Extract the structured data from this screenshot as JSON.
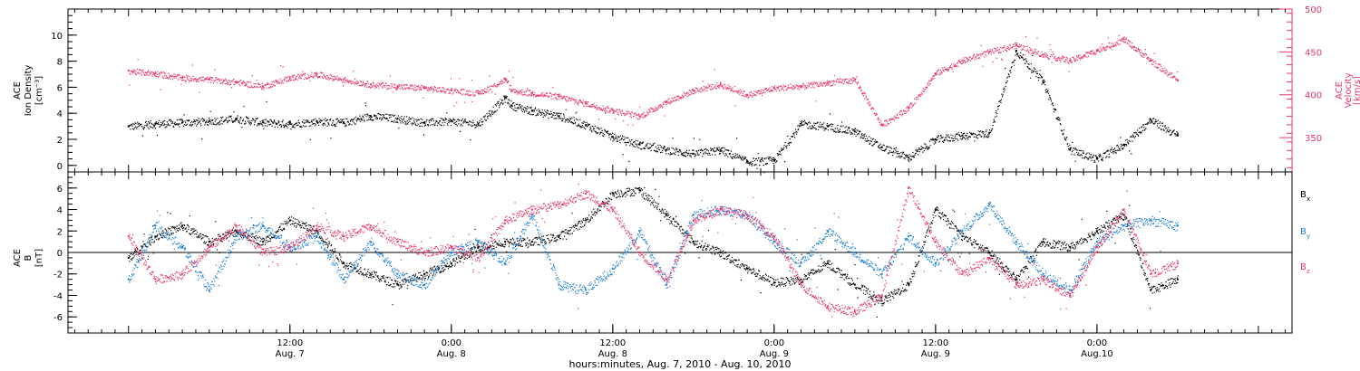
{
  "chart_data": [
    {
      "type": "scatter",
      "panel": "top",
      "ylabel_left": [
        "ACE",
        "Ion Density",
        "[cm⁻³]"
      ],
      "ylabel_right": [
        "ACE",
        "Velocity",
        "[km/s]"
      ],
      "yticks_left": [
        "0",
        "2",
        "4",
        "6",
        "8",
        "10"
      ],
      "yticks_right": [
        "350",
        "400",
        "450",
        "500"
      ],
      "ylim_left": [
        -0.5,
        12
      ],
      "ylim_right": [
        310,
        500
      ],
      "colors": {
        "density": "#000000",
        "velocity": "#e8386a"
      },
      "series": [
        {
          "axis": "left",
          "color": "#000000",
          "x": [
            0,
            2,
            4,
            6,
            8,
            10,
            12,
            14,
            16,
            18,
            20,
            22,
            24,
            26,
            28,
            28.5,
            30,
            32,
            34,
            36,
            38,
            40,
            42,
            44,
            46,
            48,
            50,
            52,
            54,
            56,
            58,
            60,
            62,
            64,
            66,
            68,
            70,
            72,
            74,
            76,
            78
          ],
          "values": [
            3.0,
            3.2,
            3.3,
            3.4,
            3.6,
            3.3,
            3.2,
            3.4,
            3.3,
            3.8,
            3.6,
            3.3,
            3.4,
            3.2,
            5.2,
            4.6,
            4.2,
            3.8,
            3.1,
            2.2,
            1.6,
            1.2,
            0.9,
            1.2,
            0.3,
            0.4,
            3.2,
            3.0,
            2.6,
            1.4,
            0.6,
            2.0,
            2.3,
            2.5,
            8.8,
            6.4,
            1.2,
            0.5,
            1.6,
            3.5,
            2.3
          ]
        },
        {
          "axis": "right",
          "color": "#e8386a",
          "x": [
            0,
            2,
            4,
            6,
            8,
            10,
            12,
            14,
            16,
            18,
            20,
            22,
            24,
            26,
            28,
            28.5,
            30,
            32,
            34,
            36,
            38,
            40,
            42,
            44,
            46,
            48,
            50,
            52,
            54,
            56,
            58,
            60,
            62,
            64,
            66,
            68,
            70,
            72,
            74,
            76,
            78
          ],
          "values": [
            428,
            425,
            420,
            418,
            415,
            410,
            420,
            424,
            418,
            412,
            410,
            408,
            405,
            402,
            418,
            405,
            402,
            398,
            390,
            382,
            375,
            392,
            405,
            412,
            400,
            408,
            410,
            414,
            418,
            365,
            385,
            425,
            440,
            450,
            458,
            447,
            440,
            452,
            465,
            440,
            417
          ]
        }
      ]
    },
    {
      "type": "scatter",
      "panel": "bottom",
      "ylabel": [
        "ACE",
        "B",
        "[nT]"
      ],
      "yticks": [
        "-6",
        "-4",
        "-2",
        "0",
        "2",
        "4",
        "6"
      ],
      "ylim": [
        -7.5,
        7.5
      ],
      "legend": [
        {
          "label": "B",
          "sub": "x",
          "color": "#000000"
        },
        {
          "label": "B",
          "sub": "y",
          "color": "#1e7fd6"
        },
        {
          "label": "B",
          "sub": "z",
          "color": "#e8386a"
        }
      ],
      "series": [
        {
          "sub": "x",
          "color": "#000000",
          "x": [
            0,
            2,
            4,
            6,
            8,
            10,
            12,
            14,
            16,
            18,
            20,
            22,
            24,
            26,
            28,
            30,
            32,
            34,
            36,
            38,
            40,
            42,
            44,
            46,
            48,
            50,
            52,
            54,
            56,
            58,
            60,
            62,
            64,
            66,
            68,
            70,
            72,
            74,
            76,
            78
          ],
          "values": [
            -0.5,
            1.5,
            2.5,
            1.0,
            2.0,
            1.0,
            3.0,
            2.0,
            -1.0,
            -2.0,
            -3.0,
            -2.0,
            -1.0,
            0.5,
            1.0,
            1.0,
            1.5,
            3.0,
            5.5,
            5.8,
            3.5,
            1.0,
            0.0,
            -1.5,
            -2.8,
            -2.5,
            -1.0,
            -3.0,
            -4.5,
            -3.0,
            4.0,
            1.5,
            0.0,
            -2.5,
            1.0,
            0.5,
            2.0,
            3.5,
            -3.5,
            -2.5
          ]
        },
        {
          "sub": "y",
          "color": "#1e7fd6",
          "x": [
            0,
            2,
            4,
            6,
            8,
            10,
            12,
            14,
            16,
            18,
            20,
            22,
            24,
            26,
            28,
            30,
            32,
            34,
            36,
            38,
            40,
            42,
            44,
            46,
            48,
            50,
            52,
            54,
            56,
            58,
            60,
            62,
            64,
            66,
            68,
            70,
            72,
            74,
            76,
            78
          ],
          "values": [
            -2.5,
            2.5,
            0.5,
            -3.5,
            1.5,
            2.5,
            0.5,
            1.5,
            -2.5,
            1.0,
            -2.0,
            -3.0,
            0.0,
            1.0,
            -1.0,
            3.5,
            -3.0,
            -3.5,
            -1.5,
            2.0,
            -3.0,
            3.5,
            4.0,
            3.5,
            1.0,
            -1.0,
            2.0,
            0.0,
            -2.0,
            1.5,
            -1.0,
            2.0,
            4.5,
            1.0,
            -2.0,
            -3.5,
            1.0,
            2.5,
            3.0,
            2.5
          ]
        },
        {
          "sub": "z",
          "color": "#e8386a",
          "x": [
            0,
            2,
            4,
            6,
            8,
            10,
            12,
            14,
            16,
            18,
            20,
            22,
            24,
            26,
            28,
            30,
            32,
            34,
            36,
            38,
            40,
            42,
            44,
            46,
            48,
            50,
            52,
            54,
            56,
            58,
            60,
            62,
            64,
            66,
            68,
            70,
            72,
            74,
            76,
            78
          ],
          "values": [
            1.5,
            -2.5,
            -2.0,
            0.5,
            2.5,
            0.0,
            0.5,
            2.5,
            1.5,
            2.5,
            1.0,
            0.0,
            0.5,
            -0.5,
            3.0,
            4.0,
            4.5,
            5.5,
            4.0,
            0.0,
            -2.5,
            3.0,
            4.0,
            3.5,
            1.5,
            -3.0,
            -5.0,
            -5.5,
            -4.0,
            6.0,
            1.0,
            -2.0,
            -0.5,
            -3.0,
            -2.5,
            -4.0,
            0.5,
            4.0,
            -2.0,
            -1.0
          ]
        }
      ]
    }
  ],
  "x_axis": {
    "ticks": [
      {
        "time": "12:00",
        "date": "Aug. 7"
      },
      {
        "time": "0:00",
        "date": "Aug. 8"
      },
      {
        "time": "12:00",
        "date": "Aug. 8"
      },
      {
        "time": "0:00",
        "date": "Aug. 9"
      },
      {
        "time": "12:00",
        "date": "Aug. 9"
      },
      {
        "time": "0:00",
        "date": "Aug.10"
      }
    ],
    "tick_hours": [
      12,
      24,
      36,
      48,
      60,
      72
    ],
    "range_hours": [
      -4.5,
      86.5
    ],
    "label": "hours:minutes, Aug.  7, 2010 - Aug. 10, 2010"
  }
}
